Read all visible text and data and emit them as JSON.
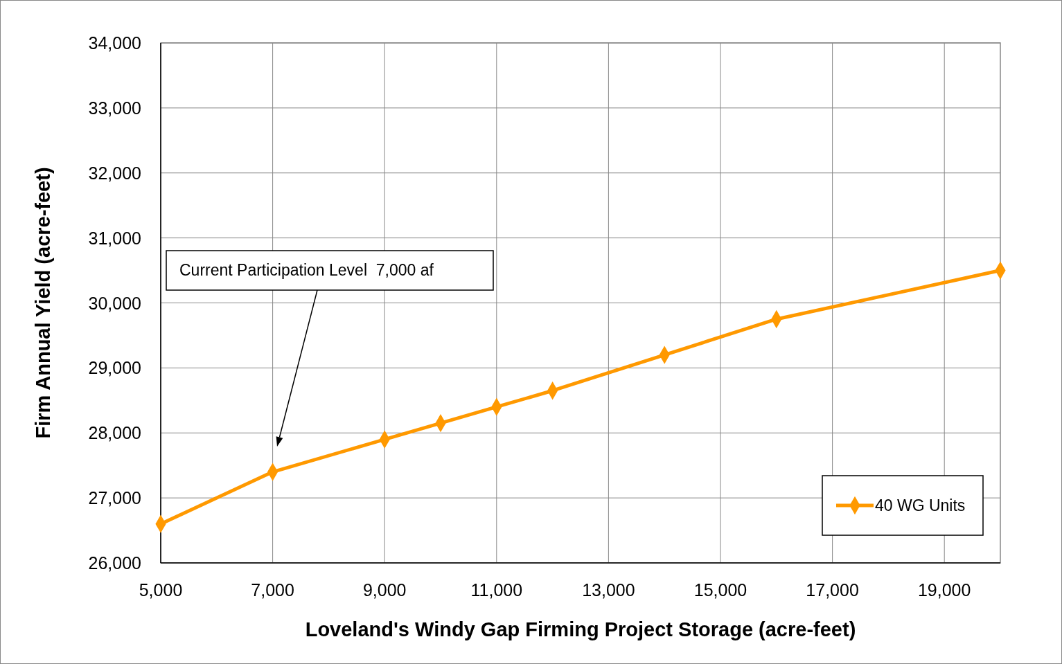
{
  "chart_data": {
    "type": "line",
    "xlabel": "Loveland's Windy Gap Firming Project Storage (acre-feet)",
    "ylabel": "Firm Annual Yield (acre-feet)",
    "x": [
      5000,
      7000,
      9000,
      10000,
      11000,
      12000,
      14000,
      16000,
      20000
    ],
    "series": [
      {
        "name": "40 WG Units",
        "color": "#ff9900",
        "values": [
          26600,
          27400,
          27900,
          28150,
          28400,
          28650,
          29200,
          29750,
          30500
        ]
      }
    ],
    "xlim": [
      5000,
      20000
    ],
    "xticks": [
      {
        "value": 5000,
        "label": "5,000"
      },
      {
        "value": 7000,
        "label": "7,000"
      },
      {
        "value": 9000,
        "label": "9,000"
      },
      {
        "value": 11000,
        "label": "11,000"
      },
      {
        "value": 13000,
        "label": "13,000"
      },
      {
        "value": 15000,
        "label": "15,000"
      },
      {
        "value": 17000,
        "label": "17,000"
      },
      {
        "value": 19000,
        "label": "19,000"
      }
    ],
    "ylim": [
      26000,
      34000
    ],
    "yticks": [
      {
        "value": 26000,
        "label": "26,000"
      },
      {
        "value": 27000,
        "label": "27,000"
      },
      {
        "value": 28000,
        "label": "28,000"
      },
      {
        "value": 29000,
        "label": "29,000"
      },
      {
        "value": 30000,
        "label": "30,000"
      },
      {
        "value": 31000,
        "label": "31,000"
      },
      {
        "value": 32000,
        "label": "32,000"
      },
      {
        "value": 33000,
        "label": "33,000"
      },
      {
        "value": 34000,
        "label": "34,000"
      }
    ],
    "grid": true,
    "legend": "bottom right",
    "marker": "diamond",
    "line_style": "solid",
    "annotations": [
      "Current Participation Level  7,000 af"
    ]
  }
}
